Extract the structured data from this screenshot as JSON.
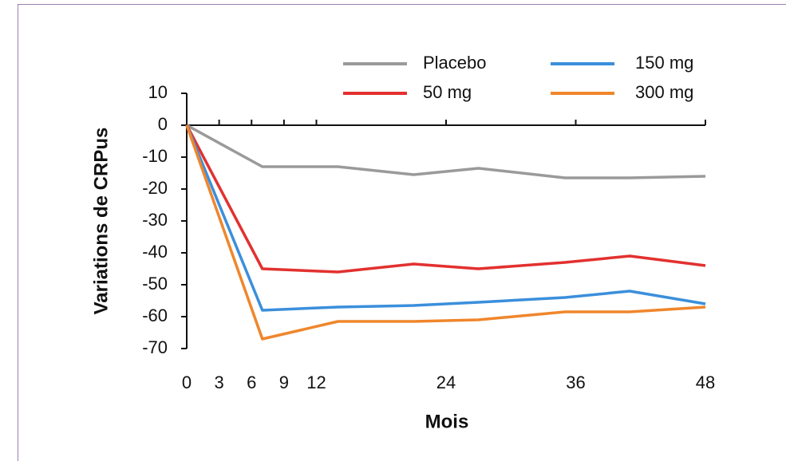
{
  "chart_data": {
    "type": "line",
    "x": [
      0,
      7,
      14,
      21,
      27,
      35,
      41,
      48
    ],
    "xlabel": "Mois",
    "ylabel": "Variations de CRPus",
    "xlim": [
      0,
      48
    ],
    "xticks": [
      0,
      3,
      6,
      9,
      12,
      24,
      36,
      48
    ],
    "ylim": [
      -70,
      10
    ],
    "yticks": [
      -70,
      -60,
      -50,
      -40,
      -30,
      -20,
      -10,
      0,
      10
    ],
    "series": [
      {
        "name": "Placebo",
        "color": "#9a9a9a",
        "values": [
          0,
          -13,
          -13,
          -15.5,
          -13.5,
          -16.5,
          -16.5,
          -16
        ]
      },
      {
        "name": "50 mg",
        "color": "#e2312f",
        "values": [
          0,
          -45,
          -46,
          -43.5,
          -45,
          -43,
          -41,
          -44
        ]
      },
      {
        "name": "150 mg",
        "color": "#3b8fdb",
        "values": [
          0,
          -58,
          -57,
          -56.5,
          -55.5,
          -54,
          -52,
          -56
        ]
      },
      {
        "name": "300 mg",
        "color": "#f0862c",
        "values": [
          0,
          -67,
          -61.5,
          -61.5,
          -61,
          -58.5,
          -58.5,
          -57
        ]
      }
    ]
  }
}
